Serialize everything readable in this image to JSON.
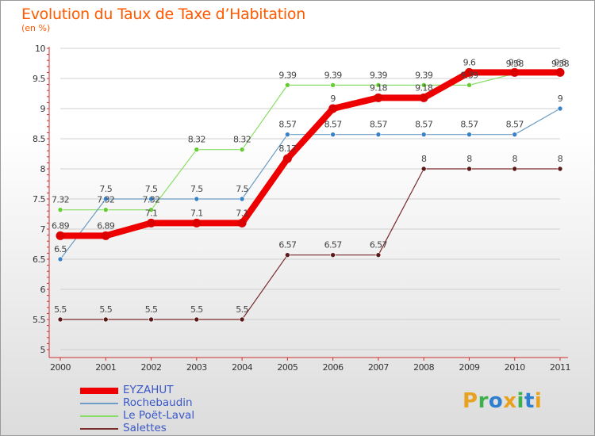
{
  "title": "Evolution du Taux de Taxe d’Habitation",
  "subtitle": "(en %)",
  "logo": {
    "letters": [
      "P",
      "r",
      "o",
      "x",
      "i",
      "t",
      "i"
    ],
    "colors": [
      "#e8a21f",
      "#3db24a",
      "#2f7fd1",
      "#e8a21f",
      "#3db24a",
      "#2f7fd1",
      "#e8a21f"
    ]
  },
  "chart_data": {
    "type": "line",
    "title": "Evolution du Taux de Taxe d’Habitation",
    "ylabel": "(en %)",
    "xlabel": "",
    "ylim": [
      5,
      10
    ],
    "yticks": [
      "5",
      "5.5",
      "6",
      "6.5",
      "7",
      "7.5",
      "8",
      "8.5",
      "9",
      "9.5",
      "10"
    ],
    "x": [
      "2000",
      "2001",
      "2002",
      "2003",
      "2004",
      "2005",
      "2006",
      "2007",
      "2008",
      "2009",
      "2010",
      "2011"
    ],
    "series": [
      {
        "name": "Salettes",
        "color": "#7a2a2a",
        "marker": "#5a1a1a",
        "width": 1.2,
        "values": [
          5.5,
          5.5,
          5.5,
          5.5,
          5.5,
          6.57,
          6.57,
          6.57,
          8,
          8,
          8,
          8
        ],
        "labels": [
          "5.5",
          "5.5",
          "5.5",
          "5.5",
          "5.5",
          "6.57",
          "6.57",
          "6.57",
          "8",
          "8",
          "8",
          "8"
        ]
      },
      {
        "name": "Le Poët-Laval",
        "color": "#88dd66",
        "marker": "#66cc33",
        "width": 1.2,
        "values": [
          7.32,
          7.32,
          7.32,
          8.32,
          8.32,
          9.39,
          9.39,
          9.39,
          9.39,
          9.39,
          9.58,
          9.58
        ],
        "labels": [
          "7.32",
          "7.32",
          "7.32",
          "8.32",
          "8.32",
          "9.39",
          "9.39",
          "9.39",
          "9.39",
          "9.39",
          "9.58",
          "9.58"
        ]
      },
      {
        "name": "Rochebaudin",
        "color": "#6d9cc4",
        "marker": "#3a82c8",
        "width": 1.2,
        "values": [
          6.5,
          7.5,
          7.5,
          7.5,
          7.5,
          8.57,
          8.57,
          8.57,
          8.57,
          8.57,
          8.57,
          9
        ],
        "labels": [
          "6.5",
          "7.5",
          "7.5",
          "7.5",
          "7.5",
          "8.57",
          "8.57",
          "8.57",
          "8.57",
          "8.57",
          "8.57",
          "9"
        ]
      },
      {
        "name": "EYZAHUT",
        "color": "#ee0000",
        "marker": "#dd0000",
        "width": 8,
        "values": [
          6.89,
          6.89,
          7.1,
          7.1,
          7.1,
          8.17,
          9,
          9.18,
          9.18,
          9.6,
          9.6,
          9.6
        ],
        "labels": [
          "6.89",
          "6.89",
          "7.1",
          "7.1",
          "7.1",
          "8.17",
          "9",
          "9.18",
          "9.18",
          "9.6",
          "9.6",
          "9.6"
        ]
      }
    ],
    "legend": [
      {
        "name": "EYZAHUT",
        "color": "#ee0000",
        "width": 8
      },
      {
        "name": "Rochebaudin",
        "color": "#6d9cc4",
        "width": 1.5
      },
      {
        "name": "Le Poët-Laval",
        "color": "#88dd66",
        "width": 1.5
      },
      {
        "name": "Salettes",
        "color": "#7a2a2a",
        "width": 1.5
      }
    ],
    "legend_position": "bottom-left"
  }
}
